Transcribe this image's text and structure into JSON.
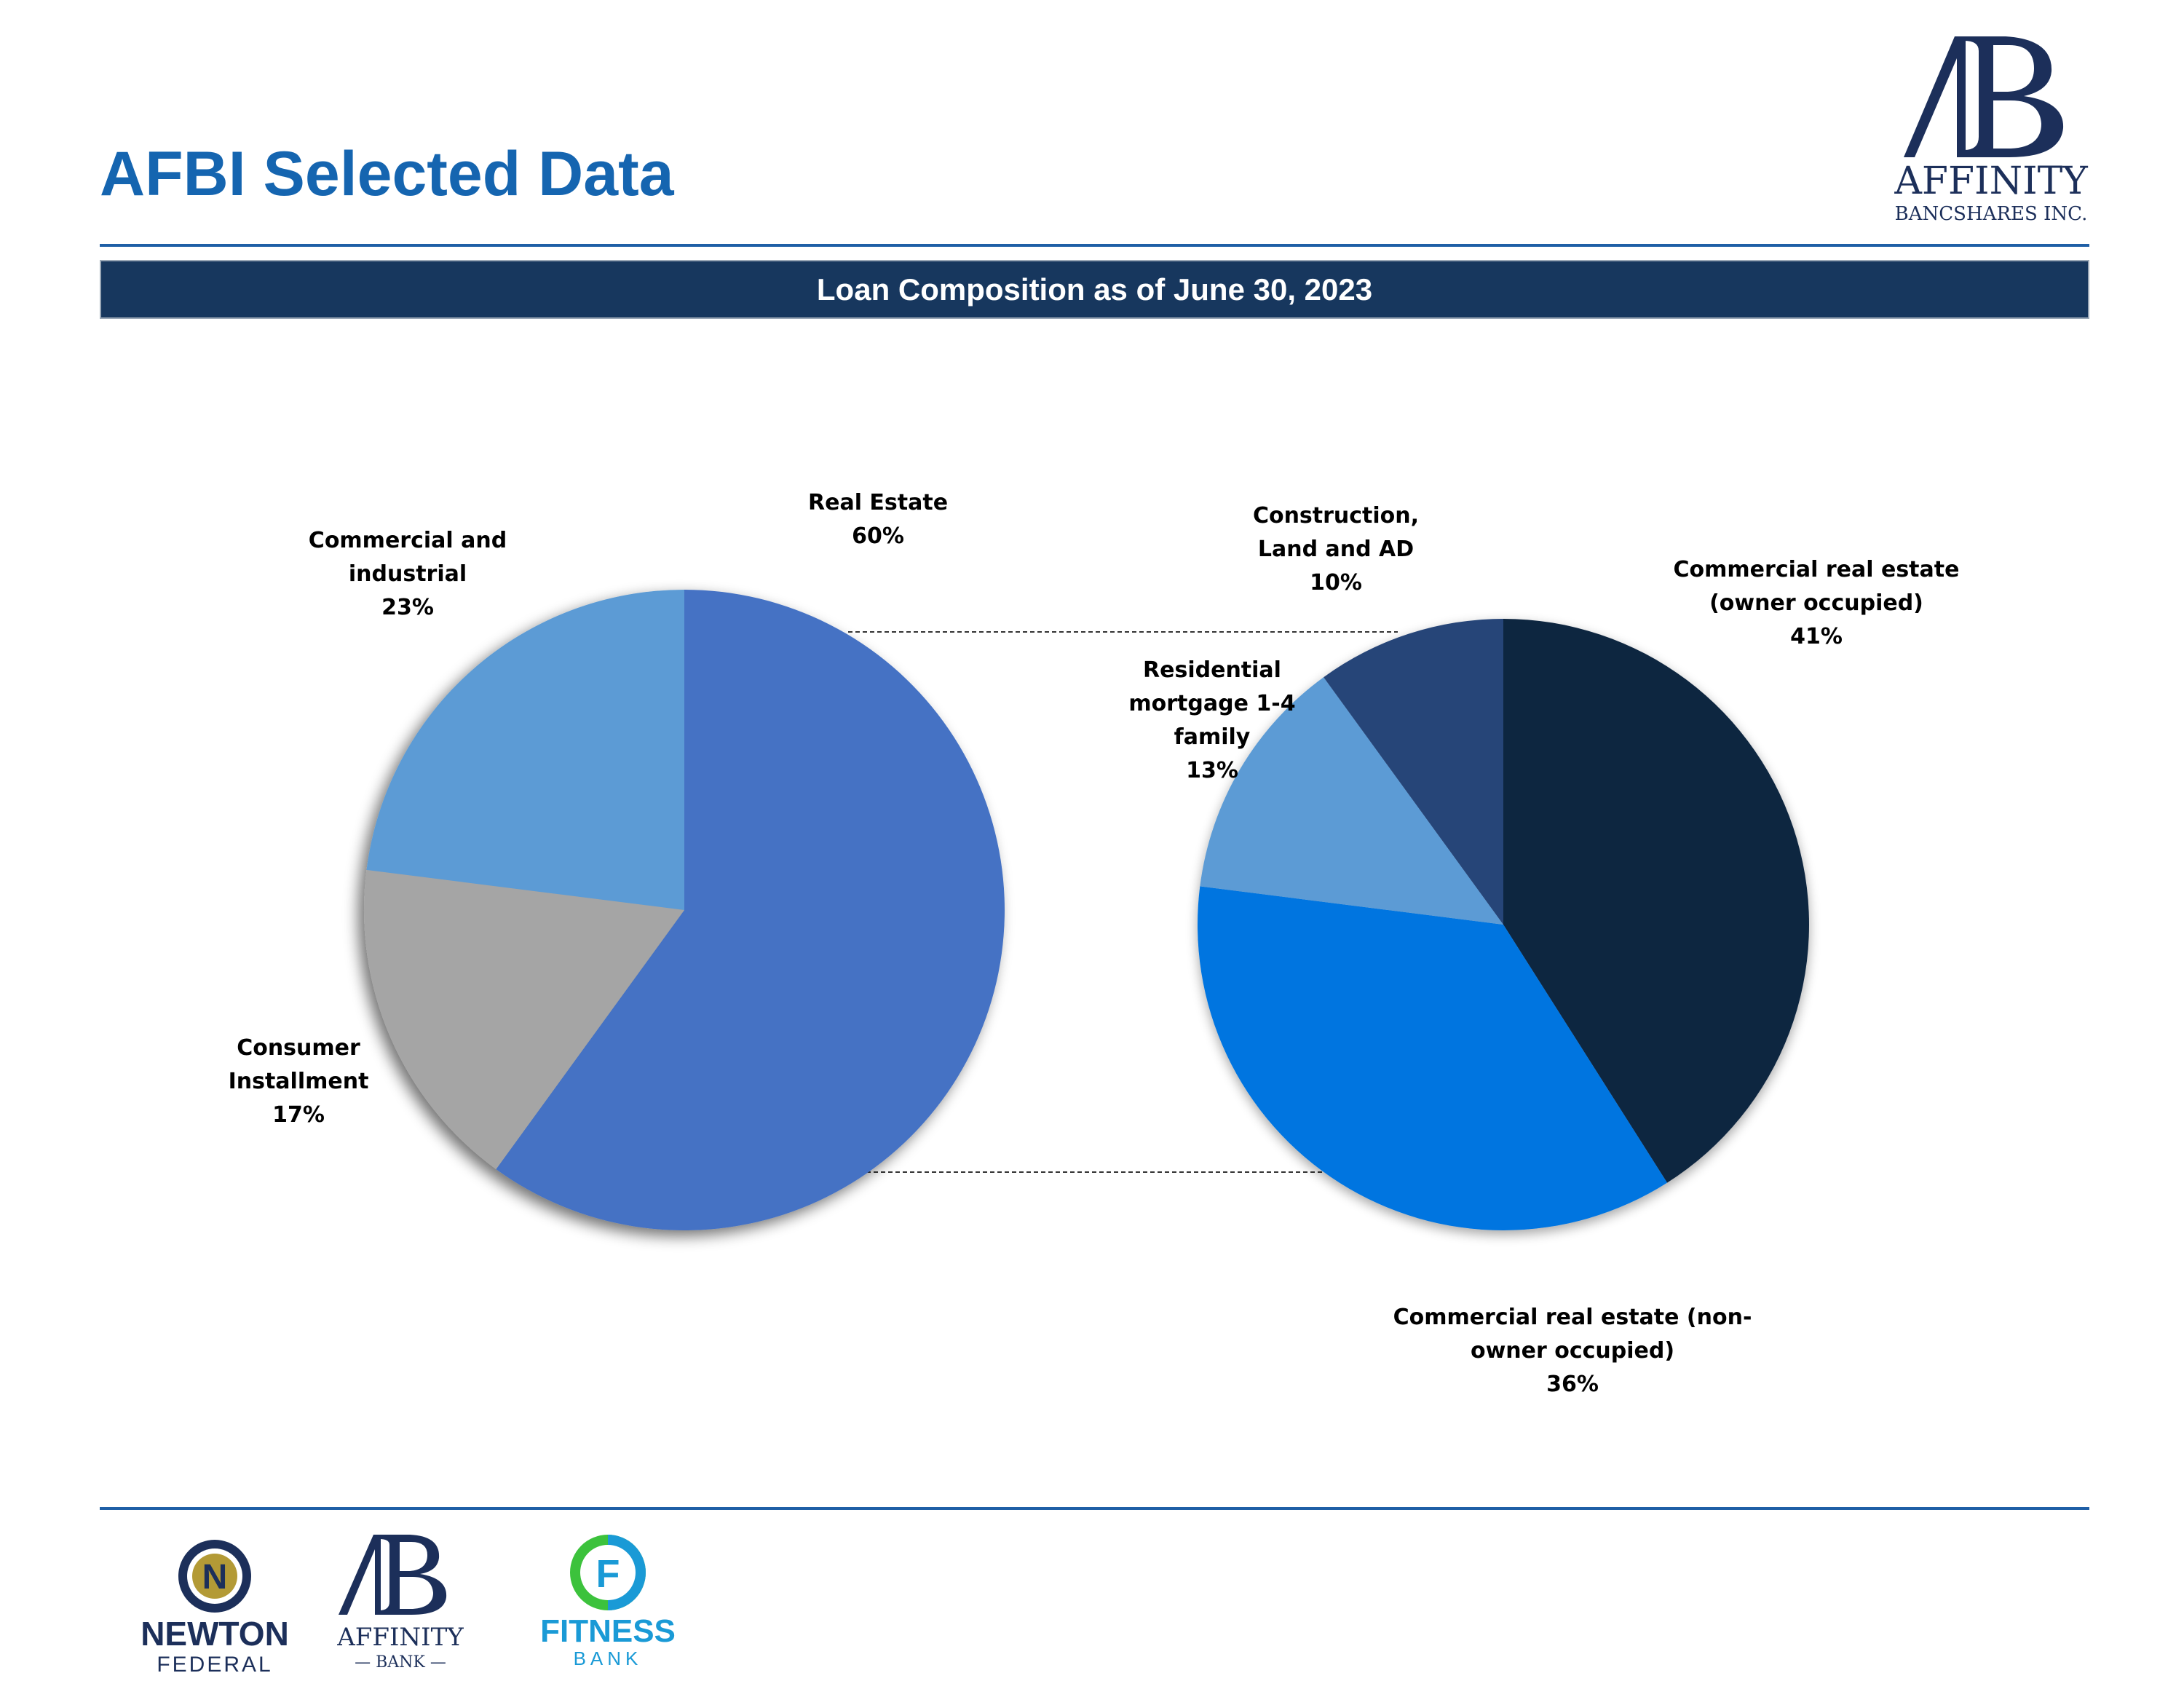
{
  "header": {
    "title": "AFBI Selected Data",
    "subtitle": "Loan Composition as of June 30, 2023"
  },
  "logos": {
    "top": {
      "name": "AFFINITY",
      "sub": "BANCSHARES INC."
    },
    "newton": {
      "line1": "NEWTON",
      "line2": "FEDERAL"
    },
    "affinity_bank": {
      "name": "AFFINITY",
      "sub": "— BANK —"
    },
    "fitness": {
      "line1": "FITNESS",
      "line2": "BANK"
    }
  },
  "chart_data": [
    {
      "type": "pie",
      "slices": [
        {
          "label": "Real Estate",
          "value": 60,
          "pct": "60%",
          "color": "#4472c4"
        },
        {
          "label": "Consumer Installment",
          "value": 17,
          "pct": "17%",
          "color": "#a5a5a5"
        },
        {
          "label": "Commercial and industrial",
          "value": 23,
          "pct": "23%",
          "color": "#5b9bd5"
        }
      ]
    },
    {
      "type": "pie",
      "slices": [
        {
          "label": "Commercial real estate (owner occupied)",
          "value": 41,
          "pct": "41%",
          "color": "#10253f"
        },
        {
          "label": "Commercial  real estate (non-owner occupied)",
          "value": 36,
          "pct": "36%",
          "color": "#0075e0"
        },
        {
          "label": "Residential mortgage 1-4 family",
          "value": 13,
          "pct": "13%",
          "color": "#5b9bd5"
        },
        {
          "label": "Construction, Land and AD",
          "value": 10,
          "pct": "10%",
          "color": "#264478"
        }
      ]
    }
  ]
}
